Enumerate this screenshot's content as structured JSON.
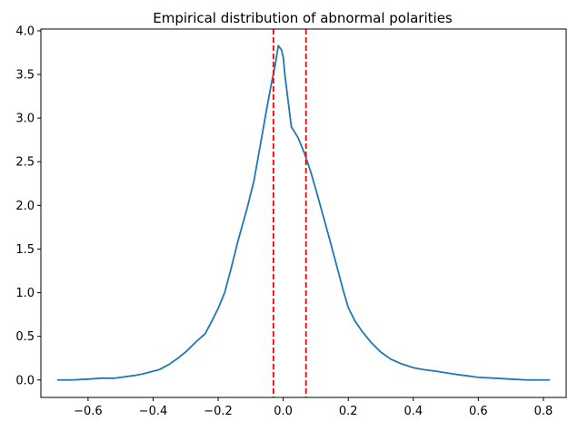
{
  "chart_data": {
    "type": "line",
    "title": "Empirical distribution of abnormal polarities",
    "xlabel": "",
    "ylabel": "",
    "xlim": [
      -0.745,
      0.87
    ],
    "ylim": [
      -0.2,
      4.02
    ],
    "grid": false,
    "x_ticks": [
      -0.6,
      -0.4,
      -0.2,
      0.0,
      0.2,
      0.4,
      0.6,
      0.8
    ],
    "x_tick_labels": [
      "−0.6",
      "−0.4",
      "−0.2",
      "0.0",
      "0.2",
      "0.4",
      "0.6",
      "0.8"
    ],
    "y_ticks": [
      0.0,
      0.5,
      1.0,
      1.5,
      2.0,
      2.5,
      3.0,
      3.5,
      4.0
    ],
    "y_tick_labels": [
      "0.0",
      "0.5",
      "1.0",
      "1.5",
      "2.0",
      "2.5",
      "3.0",
      "3.5",
      "4.0"
    ],
    "series": [
      {
        "color": "#1f77b4",
        "x": [
          -0.695,
          -0.65,
          -0.6,
          -0.56,
          -0.52,
          -0.5,
          -0.46,
          -0.43,
          -0.4,
          -0.38,
          -0.35,
          -0.32,
          -0.3,
          -0.27,
          -0.24,
          -0.22,
          -0.2,
          -0.18,
          -0.16,
          -0.14,
          -0.125,
          -0.11,
          -0.09,
          -0.07,
          -0.05,
          -0.035,
          -0.025,
          -0.015,
          -0.005,
          0.0,
          0.005,
          0.015,
          0.025,
          0.045,
          0.065,
          0.085,
          0.105,
          0.125,
          0.145,
          0.165,
          0.185,
          0.2,
          0.22,
          0.24,
          0.27,
          0.3,
          0.33,
          0.36,
          0.4,
          0.43,
          0.47,
          0.52,
          0.56,
          0.6,
          0.65,
          0.7,
          0.75,
          0.82
        ],
        "y": [
          0.0,
          0.0,
          0.01,
          0.02,
          0.02,
          0.03,
          0.05,
          0.07,
          0.1,
          0.12,
          0.18,
          0.26,
          0.32,
          0.43,
          0.53,
          0.67,
          0.82,
          1.0,
          1.28,
          1.58,
          1.78,
          1.98,
          2.28,
          2.7,
          3.12,
          3.42,
          3.6,
          3.83,
          3.78,
          3.7,
          3.5,
          3.2,
          2.9,
          2.78,
          2.6,
          2.38,
          2.12,
          1.85,
          1.58,
          1.3,
          1.02,
          0.83,
          0.68,
          0.57,
          0.43,
          0.32,
          0.24,
          0.19,
          0.14,
          0.12,
          0.1,
          0.07,
          0.05,
          0.03,
          0.02,
          0.01,
          0.0,
          0.0
        ]
      }
    ],
    "vlines": [
      {
        "x": -0.03,
        "color": "#ff0000",
        "style": "dashed"
      },
      {
        "x": 0.07,
        "color": "#ff0000",
        "style": "dashed"
      }
    ]
  }
}
